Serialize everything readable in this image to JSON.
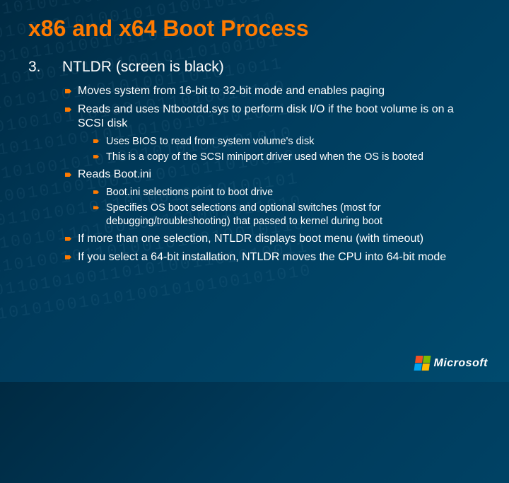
{
  "title": "x86 and x64 Boot Process",
  "number": "3.",
  "heading": "NTLDR (screen is black)",
  "bullets": {
    "b1": "Moves system from 16-bit to 32-bit mode and enables paging",
    "b2": "Reads and uses Ntbootdd.sys to perform disk I/O if the boot volume is on a SCSI disk",
    "b2s1": "Uses BIOS to read from system volume's disk",
    "b2s2": "This is a copy of the SCSI miniport driver used when the OS is booted",
    "b3": "Reads Boot.ini",
    "b3s1": "Boot.ini selections point to boot drive",
    "b3s2": "Specifies OS boot selections and optional switches (most for debugging/troubleshooting) that passed to kernel during boot",
    "b4": "If more than one selection, NTLDR displays boot menu (with timeout)",
    "b5": "If you select a 64-bit installation, NTLDR moves the CPU into 64-bit mode"
  },
  "logo": "Microsoft",
  "colors": {
    "title": "#ff7a00",
    "text": "#ffffff",
    "background": "#003b5c"
  }
}
